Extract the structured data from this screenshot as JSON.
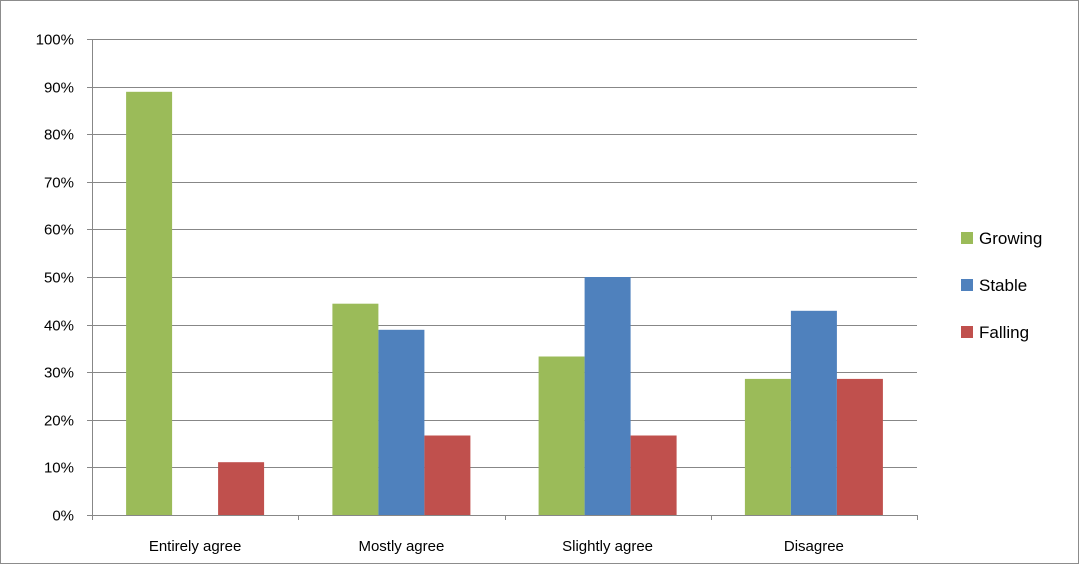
{
  "chart_data": {
    "type": "bar",
    "categories": [
      "Entirely agree",
      "Mostly agree",
      "Slightly agree",
      "Disagree"
    ],
    "series": [
      {
        "name": "Growing",
        "color": "#9BBB59",
        "values": [
          0.889,
          0.444,
          0.333,
          0.286
        ]
      },
      {
        "name": "Stable",
        "color": "#4F81BD",
        "values": [
          0.0,
          0.389,
          0.5,
          0.429
        ]
      },
      {
        "name": "Falling",
        "color": "#C0504D",
        "values": [
          0.111,
          0.167,
          0.167,
          0.286
        ]
      }
    ],
    "ylim": [
      0,
      1
    ],
    "yticks": [
      "0%",
      "10%",
      "20%",
      "30%",
      "40%",
      "50%",
      "60%",
      "70%",
      "80%",
      "90%",
      "100%"
    ],
    "title": "",
    "xlabel": "",
    "ylabel": "",
    "grid": true,
    "legend_position": "right"
  }
}
